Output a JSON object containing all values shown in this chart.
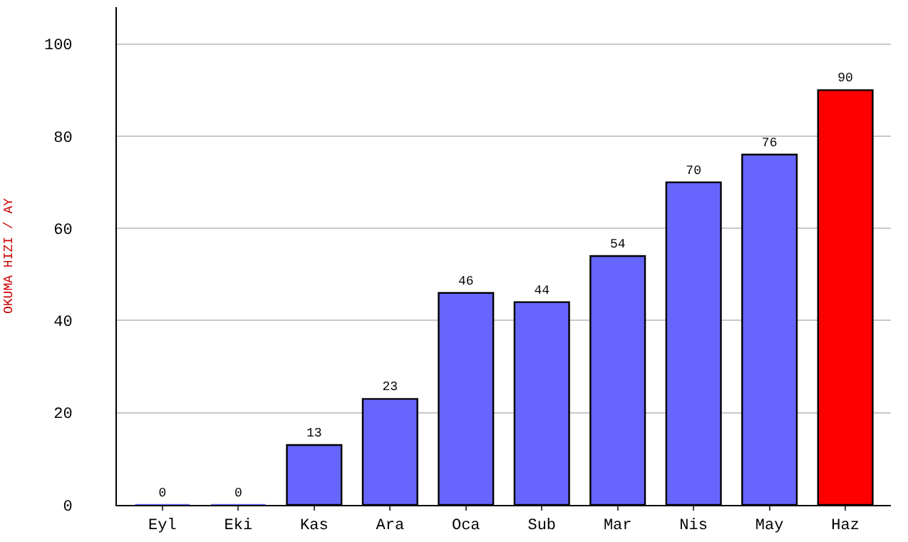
{
  "chart_data": {
    "type": "bar",
    "ylabel": "OKUMA HIZI / AY",
    "categories": [
      "Eyl",
      "Eki",
      "Kas",
      "Ara",
      "Oca",
      "Sub",
      "Mar",
      "Nis",
      "May",
      "Haz"
    ],
    "values": [
      0,
      0,
      13,
      23,
      46,
      44,
      54,
      70,
      76,
      90
    ],
    "colors": [
      "#6666ff",
      "#6666ff",
      "#6666ff",
      "#6666ff",
      "#6666ff",
      "#6666ff",
      "#6666ff",
      "#6666ff",
      "#6666ff",
      "#ff0000"
    ],
    "ylim": [
      0,
      108
    ],
    "yticks": [
      0,
      20,
      40,
      60,
      80,
      100
    ],
    "grid": "y",
    "data_labels": true,
    "legend": false
  }
}
